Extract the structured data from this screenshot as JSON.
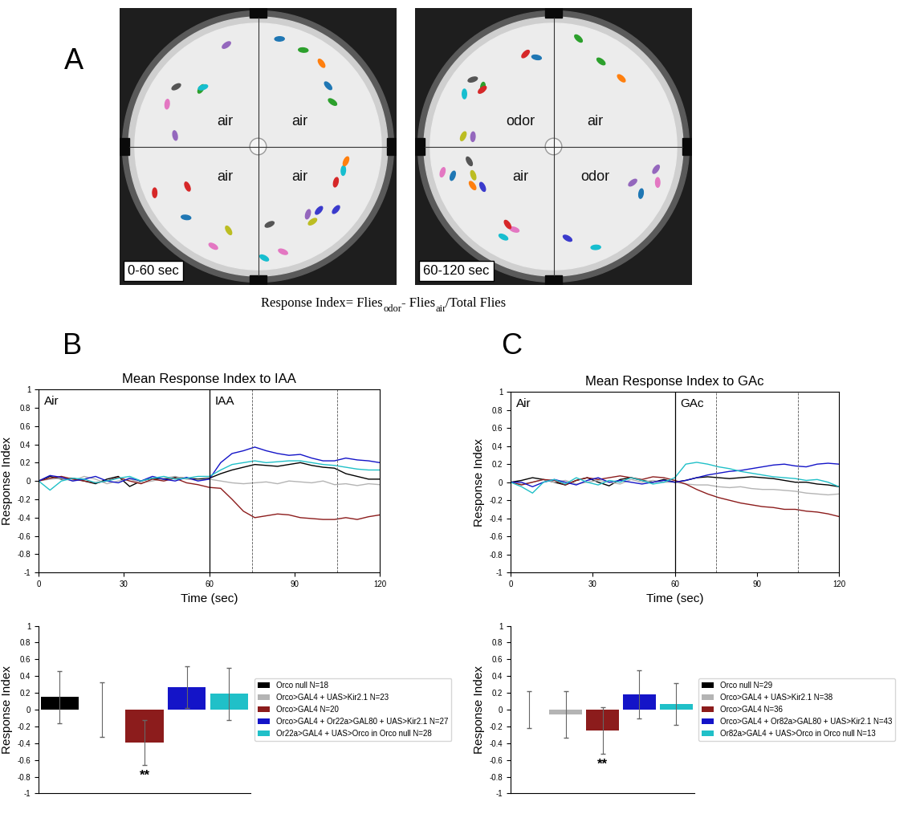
{
  "panel_a": {
    "label": "A",
    "arenas": [
      {
        "quadrants": [
          "air",
          "air",
          "air",
          "air"
        ],
        "time": "0-60 sec"
      },
      {
        "quadrants": [
          "odor",
          "air",
          "air",
          "odor"
        ],
        "time": "60-120 sec"
      }
    ],
    "formula": [
      {
        "text": "Response Index= Flies",
        "sub": false
      },
      {
        "text": "odor",
        "sub": true
      },
      {
        "text": "- Flies",
        "sub": false
      },
      {
        "text": "air",
        "sub": true
      },
      {
        "text": "/Total Flies",
        "sub": false
      }
    ]
  },
  "chart_data": [
    {
      "type": "line",
      "panel_label": "B",
      "title": "Mean Response Index to IAA",
      "x_label": "Time (sec)",
      "y_label": "Response Index",
      "period_labels": [
        "Air",
        "IAA"
      ],
      "odor_onset": 60,
      "analysis_window": [
        75,
        105
      ],
      "xlim": [
        0,
        120
      ],
      "xticks": [
        0,
        30,
        60,
        90,
        120
      ],
      "ylim": [
        -1,
        1
      ],
      "yticks": [
        -1,
        -0.8,
        -0.6,
        -0.4,
        -0.2,
        0,
        0.2,
        0.4,
        0.6,
        0.8,
        1
      ],
      "grid": false,
      "x": [
        0,
        4,
        8,
        12,
        16,
        20,
        24,
        28,
        32,
        36,
        40,
        44,
        48,
        52,
        56,
        60,
        64,
        68,
        72,
        76,
        80,
        84,
        88,
        92,
        96,
        100,
        104,
        108,
        112,
        116,
        120
      ],
      "series": [
        {
          "color": "#000000",
          "values": [
            0.0,
            0.05,
            0.02,
            0.03,
            0.0,
            -0.03,
            0.02,
            0.05,
            -0.06,
            0.0,
            0.03,
            0.02,
            0.04,
            0.03,
            0.02,
            0.03,
            0.08,
            0.12,
            0.15,
            0.18,
            0.17,
            0.16,
            0.18,
            0.2,
            0.17,
            0.15,
            0.14,
            0.08,
            0.05,
            0.02,
            0.02
          ]
        },
        {
          "color": "#b4b4b4",
          "values": [
            0.0,
            0.02,
            0.03,
            0.0,
            0.05,
            0.02,
            -0.03,
            0.0,
            0.02,
            -0.02,
            0.0,
            0.03,
            0.05,
            0.02,
            0.01,
            0.02,
            0.0,
            -0.02,
            -0.03,
            -0.02,
            -0.01,
            -0.03,
            0.0,
            -0.01,
            -0.02,
            0.0,
            -0.04,
            -0.03,
            -0.05,
            -0.03,
            -0.04
          ]
        },
        {
          "color": "#8c1c1c",
          "values": [
            0.0,
            0.03,
            0.05,
            0.02,
            0.0,
            -0.02,
            0.0,
            0.04,
            0.0,
            -0.03,
            0.02,
            0.0,
            0.03,
            -0.02,
            -0.04,
            -0.07,
            -0.08,
            -0.2,
            -0.33,
            -0.4,
            -0.38,
            -0.36,
            -0.37,
            -0.4,
            -0.41,
            -0.42,
            -0.42,
            -0.4,
            -0.42,
            -0.39,
            -0.37
          ]
        },
        {
          "color": "#1414c8",
          "values": [
            0.0,
            0.06,
            0.04,
            0.0,
            0.02,
            0.05,
            0.0,
            -0.02,
            0.03,
            0.0,
            0.05,
            0.02,
            0.0,
            0.04,
            0.0,
            0.02,
            0.2,
            0.3,
            0.33,
            0.37,
            0.33,
            0.3,
            0.28,
            0.29,
            0.25,
            0.22,
            0.22,
            0.25,
            0.23,
            0.22,
            0.2
          ]
        },
        {
          "color": "#20c0c8",
          "values": [
            0.0,
            -0.1,
            0.0,
            0.03,
            0.02,
            -0.02,
            0.0,
            0.03,
            0.05,
            0.0,
            0.03,
            0.05,
            0.02,
            0.03,
            0.05,
            0.05,
            0.12,
            0.18,
            0.2,
            0.22,
            0.2,
            0.21,
            0.22,
            0.22,
            0.2,
            0.18,
            0.17,
            0.15,
            0.13,
            0.12,
            0.12
          ]
        }
      ]
    },
    {
      "type": "bar",
      "y_label": "Response Index",
      "categories": [
        "Orco null N=18",
        "Orco>GAL4 + UAS>Kir2.1 N=23",
        "Orco>GAL4 N=20",
        "Orco>GAL4 + Or22a>GAL80 + UAS>Kir2.1 N=27",
        "Or22a>GAL4 + UAS>Orco in Orco null N=28"
      ],
      "values": [
        0.15,
        0.0,
        -0.39,
        0.27,
        0.19
      ],
      "errors": [
        0.31,
        0.33,
        0.27,
        0.25,
        0.31
      ],
      "colors": [
        "#000000",
        "#b4b4b4",
        "#8c1c1c",
        "#1414c8",
        "#20c0c8"
      ],
      "annotations": [
        {
          "text": "**",
          "index": 2
        }
      ],
      "ylim": [
        -1,
        1
      ],
      "yticks": [
        -1,
        -0.8,
        -0.6,
        -0.4,
        -0.2,
        0,
        0.2,
        0.4,
        0.6,
        0.8,
        1
      ],
      "tick_labels": "y",
      "legend": "right",
      "grid": false
    },
    {
      "type": "line",
      "panel_label": "C",
      "title": "Mean Response Index to GAc",
      "x_label": "Time (sec)",
      "y_label": "Response Index",
      "period_labels": [
        "Air",
        "GAc"
      ],
      "odor_onset": 60,
      "analysis_window": [
        75,
        105
      ],
      "xlim": [
        0,
        120
      ],
      "xticks": [
        0,
        30,
        60,
        90,
        120
      ],
      "ylim": [
        -1,
        1
      ],
      "yticks": [
        -1,
        -0.8,
        -0.6,
        -0.4,
        -0.2,
        0,
        0.2,
        0.4,
        0.6,
        0.8,
        1
      ],
      "grid": false,
      "x": [
        0,
        4,
        8,
        12,
        16,
        20,
        24,
        28,
        32,
        36,
        40,
        44,
        48,
        52,
        56,
        60,
        64,
        68,
        72,
        76,
        80,
        84,
        88,
        92,
        96,
        100,
        104,
        108,
        112,
        116,
        120
      ],
      "series": [
        {
          "color": "#000000",
          "values": [
            0.0,
            0.02,
            0.05,
            0.03,
            0.0,
            -0.03,
            0.02,
            0.05,
            0.0,
            -0.04,
            0.03,
            0.05,
            0.02,
            0.0,
            0.03,
            0.0,
            0.02,
            0.05,
            0.06,
            0.05,
            0.04,
            0.05,
            0.06,
            0.05,
            0.04,
            0.02,
            0.0,
            0.0,
            -0.02,
            -0.03,
            -0.05
          ]
        },
        {
          "color": "#b4b4b4",
          "values": [
            0.0,
            -0.02,
            0.0,
            0.03,
            0.0,
            0.02,
            -0.02,
            0.0,
            0.02,
            0.0,
            -0.02,
            0.03,
            0.0,
            0.02,
            0.0,
            0.0,
            -0.02,
            -0.03,
            -0.03,
            -0.05,
            -0.06,
            -0.05,
            -0.07,
            -0.08,
            -0.08,
            -0.09,
            -0.1,
            -0.12,
            -0.13,
            -0.14,
            -0.13
          ]
        },
        {
          "color": "#8c1c1c",
          "values": [
            0.0,
            -0.03,
            0.0,
            0.03,
            0.02,
            -0.03,
            0.02,
            0.05,
            0.03,
            0.05,
            0.07,
            0.05,
            0.03,
            0.06,
            0.05,
            0.02,
            -0.02,
            -0.08,
            -0.13,
            -0.17,
            -0.2,
            -0.23,
            -0.25,
            -0.27,
            -0.28,
            -0.3,
            -0.3,
            -0.32,
            -0.33,
            -0.35,
            -0.38
          ]
        },
        {
          "color": "#1414c8",
          "values": [
            0.0,
            0.0,
            -0.05,
            0.0,
            0.03,
            0.0,
            -0.03,
            0.02,
            0.05,
            0.0,
            0.02,
            0.0,
            -0.02,
            0.0,
            0.02,
            0.0,
            0.02,
            0.05,
            0.08,
            0.1,
            0.12,
            0.13,
            0.15,
            0.17,
            0.19,
            0.2,
            0.18,
            0.17,
            0.2,
            0.21,
            0.2
          ]
        },
        {
          "color": "#20c0c8",
          "values": [
            0.0,
            -0.05,
            -0.12,
            0.0,
            0.03,
            -0.02,
            0.05,
            0.0,
            -0.03,
            0.02,
            0.0,
            0.05,
            0.02,
            -0.02,
            0.0,
            0.05,
            0.2,
            0.22,
            0.2,
            0.17,
            0.15,
            0.12,
            0.1,
            0.08,
            0.06,
            0.05,
            0.04,
            0.02,
            0.03,
            0.0,
            -0.05
          ]
        }
      ]
    },
    {
      "type": "bar",
      "y_label": "Response Index",
      "categories": [
        "Orco null N=29",
        "Orco>GAL4 + UAS>Kir2.1 N=38",
        "Orco>GAL4 N=36",
        "Orco>GAL4 + Or82a>GAL80 + UAS>Kir2.1 N=43",
        "Or82a>GAL4 + UAS>Orco in Orco null N=13"
      ],
      "values": [
        0.0,
        -0.06,
        -0.25,
        0.18,
        0.07
      ],
      "errors": [
        0.22,
        0.28,
        0.28,
        0.29,
        0.25
      ],
      "colors": [
        "#000000",
        "#b4b4b4",
        "#8c1c1c",
        "#1414c8",
        "#20c0c8"
      ],
      "annotations": [
        {
          "text": "**",
          "index": 2
        }
      ],
      "ylim": [
        -1,
        1
      ],
      "yticks": [
        -1,
        -0.8,
        -0.6,
        -0.4,
        -0.2,
        0,
        0.2,
        0.4,
        0.6,
        0.8,
        1
      ],
      "tick_labels": "y",
      "legend": "right",
      "grid": false
    }
  ]
}
